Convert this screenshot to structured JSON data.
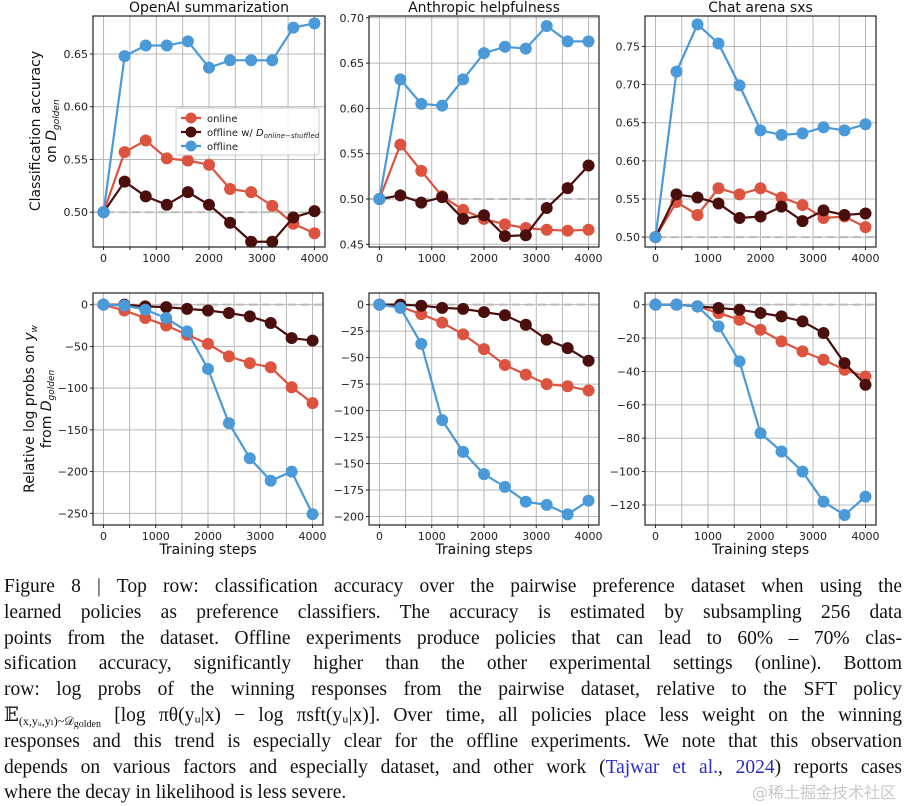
{
  "colors": {
    "online": "#dc5440",
    "shuffled": "#4a0f0c",
    "offline": "#4a9ad9",
    "baseline": "#bbbbbb",
    "grid": "#b8b8b8"
  },
  "legend": {
    "online": "online",
    "shuffled_prefix": "offline w/ ",
    "shuffled_symbol": "D",
    "shuffled_subscript": "online−shuffled",
    "offline": "offline",
    "placement": "center-right of first panel"
  },
  "row_labels": {
    "top": {
      "line1": "Classification accuracy",
      "line2_prefix": "on ",
      "symbol": "D",
      "subscript": "golden"
    },
    "bottom": {
      "line1_prefix": "Relative log probs on ",
      "line1_symbol": "y",
      "line1_subscript": "w",
      "line2_prefix": "from ",
      "symbol": "D",
      "subscript": "golden"
    }
  },
  "chart_data": [
    {
      "type": "line",
      "title": "OpenAI summarization",
      "xlabel": "",
      "xlim": [
        -200,
        4200
      ],
      "ylim": [
        0.467,
        0.686
      ],
      "xticks": [
        0,
        1000,
        2000,
        3000,
        4000
      ],
      "yticks": [
        0.5,
        0.55,
        0.6,
        0.65
      ],
      "ytick_labels": [
        "0.50",
        "0.55",
        "0.60",
        "0.65"
      ],
      "baseline": 0.5,
      "grid": true,
      "x": [
        0,
        400,
        800,
        1200,
        1600,
        2000,
        2400,
        2800,
        3200,
        3600,
        4000
      ],
      "series": [
        {
          "name": "online",
          "key": "online",
          "values": [
            0.5,
            0.557,
            0.568,
            0.551,
            0.549,
            0.545,
            0.522,
            0.519,
            0.506,
            0.489,
            0.48
          ]
        },
        {
          "name": "offline w/ D online-shuffled",
          "key": "shuffled",
          "values": [
            0.5,
            0.529,
            0.515,
            0.507,
            0.519,
            0.507,
            0.49,
            0.472,
            0.472,
            0.495,
            0.501
          ]
        },
        {
          "name": "offline",
          "key": "offline",
          "values": [
            0.5,
            0.648,
            0.658,
            0.658,
            0.662,
            0.637,
            0.644,
            0.644,
            0.644,
            0.675,
            0.679
          ]
        }
      ]
    },
    {
      "type": "line",
      "title": "Anthropic helpfulness",
      "xlabel": "",
      "xlim": [
        -200,
        4200
      ],
      "ylim": [
        0.447,
        0.702
      ],
      "xticks": [
        0,
        1000,
        2000,
        3000,
        4000
      ],
      "yticks": [
        0.45,
        0.5,
        0.55,
        0.6,
        0.65,
        0.7
      ],
      "ytick_labels": [
        "0.45",
        "0.50",
        "0.55",
        "0.60",
        "0.65",
        "0.70"
      ],
      "baseline": 0.5,
      "grid": true,
      "x": [
        0,
        400,
        800,
        1200,
        1600,
        2000,
        2400,
        2800,
        3200,
        3600,
        4000
      ],
      "series": [
        {
          "name": "online",
          "key": "online",
          "values": [
            0.5,
            0.56,
            0.531,
            0.503,
            0.488,
            0.478,
            0.472,
            0.468,
            0.466,
            0.465,
            0.466
          ]
        },
        {
          "name": "offline w/ D online-shuffled",
          "key": "shuffled",
          "values": [
            0.5,
            0.504,
            0.496,
            0.502,
            0.478,
            0.482,
            0.459,
            0.46,
            0.49,
            0.512,
            0.537
          ]
        },
        {
          "name": "offline",
          "key": "offline",
          "values": [
            0.5,
            0.632,
            0.605,
            0.603,
            0.632,
            0.661,
            0.668,
            0.666,
            0.691,
            0.674,
            0.674
          ]
        }
      ]
    },
    {
      "type": "line",
      "title": "Chat arena sxs",
      "xlabel": "",
      "xlim": [
        -200,
        4200
      ],
      "ylim": [
        0.487,
        0.79
      ],
      "xticks": [
        0,
        1000,
        2000,
        3000,
        4000
      ],
      "yticks": [
        0.5,
        0.55,
        0.6,
        0.65,
        0.7,
        0.75
      ],
      "ytick_labels": [
        "0.50",
        "0.55",
        "0.60",
        "0.65",
        "0.70",
        "0.75"
      ],
      "baseline": 0.5,
      "grid": true,
      "x": [
        0,
        400,
        800,
        1200,
        1600,
        2000,
        2400,
        2800,
        3200,
        3600,
        4000
      ],
      "series": [
        {
          "name": "online",
          "key": "online",
          "values": [
            0.5,
            0.546,
            0.529,
            0.564,
            0.556,
            0.564,
            0.552,
            0.542,
            0.525,
            0.527,
            0.513
          ]
        },
        {
          "name": "offline w/ D online-shuffled",
          "key": "shuffled",
          "values": [
            0.5,
            0.556,
            0.552,
            0.544,
            0.525,
            0.527,
            0.54,
            0.521,
            0.535,
            0.529,
            0.531
          ]
        },
        {
          "name": "offline",
          "key": "offline",
          "values": [
            0.5,
            0.717,
            0.779,
            0.754,
            0.699,
            0.64,
            0.634,
            0.636,
            0.644,
            0.64,
            0.648
          ]
        }
      ]
    },
    {
      "type": "line",
      "title": "",
      "xlabel": "Training steps",
      "xlim": [
        -200,
        4200
      ],
      "ylim": [
        -264,
        14
      ],
      "xticks": [
        0,
        1000,
        2000,
        3000,
        4000
      ],
      "yticks": [
        0,
        -50,
        -100,
        -150,
        -200,
        -250
      ],
      "ytick_labels": [
        "0",
        "−50",
        "−100",
        "−150",
        "−200",
        "−250"
      ],
      "baseline": 0,
      "grid": true,
      "x": [
        0,
        400,
        800,
        1200,
        1600,
        2000,
        2400,
        2800,
        3200,
        3600,
        4000
      ],
      "series": [
        {
          "name": "online",
          "key": "online",
          "values": [
            0,
            -7,
            -16,
            -25,
            -36,
            -47,
            -62,
            -70,
            -75,
            -99,
            -118
          ]
        },
        {
          "name": "offline w/ D online-shuffled",
          "key": "shuffled",
          "values": [
            0,
            0,
            -2,
            -3,
            -5,
            -7,
            -10,
            -14,
            -22,
            -40,
            -43
          ]
        },
        {
          "name": "offline",
          "key": "offline",
          "values": [
            0,
            -1,
            -6,
            -16,
            -32,
            -77,
            -142,
            -184,
            -211,
            -200,
            -251
          ]
        }
      ]
    },
    {
      "type": "line",
      "title": "",
      "xlabel": "Training steps",
      "xlim": [
        -200,
        4200
      ],
      "ylim": [
        -208,
        11
      ],
      "xticks": [
        0,
        1000,
        2000,
        3000,
        4000
      ],
      "yticks": [
        0,
        -25,
        -50,
        -75,
        -100,
        -125,
        -150,
        -175,
        -200
      ],
      "ytick_labels": [
        "0",
        "−25",
        "−50",
        "−75",
        "−100",
        "−125",
        "−150",
        "−175",
        "−200"
      ],
      "baseline": 0,
      "grid": true,
      "x": [
        0,
        400,
        800,
        1200,
        1600,
        2000,
        2400,
        2800,
        3200,
        3600,
        4000
      ],
      "series": [
        {
          "name": "online",
          "key": "online",
          "values": [
            0,
            -2,
            -9,
            -17,
            -28,
            -42,
            -57,
            -66,
            -75,
            -77,
            -81
          ]
        },
        {
          "name": "offline w/ D online-shuffled",
          "key": "shuffled",
          "values": [
            0,
            0,
            -1,
            -3,
            -4,
            -7,
            -10,
            -19,
            -33,
            -41,
            -53
          ]
        },
        {
          "name": "offline",
          "key": "offline",
          "values": [
            0,
            -3,
            -37,
            -109,
            -139,
            -160,
            -172,
            -186,
            -189,
            -198,
            -185
          ]
        }
      ]
    },
    {
      "type": "line",
      "title": "",
      "xlabel": "Training steps",
      "xlim": [
        -200,
        4200
      ],
      "ylim": [
        -132,
        7
      ],
      "xticks": [
        0,
        1000,
        2000,
        3000,
        4000
      ],
      "yticks": [
        0,
        -20,
        -40,
        -60,
        -80,
        -100,
        -120
      ],
      "ytick_labels": [
        "0",
        "−20",
        "−40",
        "−60",
        "−80",
        "−100",
        "−120"
      ],
      "baseline": 0,
      "grid": true,
      "x": [
        0,
        400,
        800,
        1200,
        1600,
        2000,
        2400,
        2800,
        3200,
        3600,
        4000
      ],
      "series": [
        {
          "name": "online",
          "key": "online",
          "values": [
            0,
            0,
            -1,
            -5,
            -9,
            -15,
            -22,
            -28,
            -33,
            -39,
            -43
          ]
        },
        {
          "name": "offline w/ D online-shuffled",
          "key": "shuffled",
          "values": [
            0,
            0,
            -1,
            -2,
            -3,
            -5,
            -7,
            -10,
            -17,
            -35,
            -48
          ]
        },
        {
          "name": "offline",
          "key": "offline",
          "values": [
            0,
            0,
            -1,
            -13,
            -34,
            -77,
            -88,
            -100,
            -118,
            -126,
            -115
          ]
        }
      ]
    }
  ],
  "caption": {
    "l1": "Figure 8 | Top row: classification accuracy over the pairwise preference dataset when using the",
    "l2": "learned policies as preference classifiers.  The accuracy is estimated by subsampling 256 data",
    "l3": "points from the dataset.  Offline experiments produce policies that can lead to 60% – 70% clas-",
    "l4": "sification accuracy, significantly higher than the other experimental settings (online).  Bottom",
    "l5": "row:  log probs of the winning responses from the pairwise dataset, relative to the SFT policy",
    "l6_expect": "𝔼",
    "l6_sub": "(x,yᵤ,yₗ)~𝒟",
    "l6_sub2": "golden",
    "l6_rest": " [log πθ(yᵤ|x) − log πsft(yᵤ|x)]. Over time, all policies place less weight on the winning",
    "l7": "responses and this trend is especially clear for the offline experiments. We note that this observation",
    "l8_pre": "depends on various factors and especially dataset, and other work (",
    "l8_link1": "Tajwar et al.",
    "l8_mid": ", ",
    "l8_link2": "2024",
    "l8_post": ") reports cases",
    "l9": "where the decay in likelihood is less severe."
  },
  "watermark": "@稀土掘金技术社区"
}
